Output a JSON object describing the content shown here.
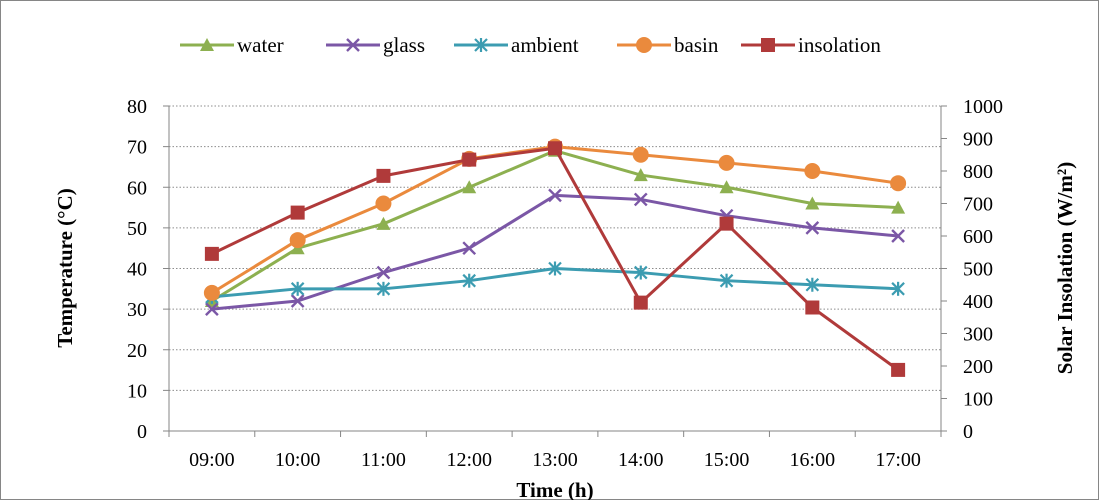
{
  "chart_data": {
    "type": "line",
    "categories": [
      "09:00",
      "10:00",
      "11:00",
      "12:00",
      "13:00",
      "14:00",
      "15:00",
      "16:00",
      "17:00"
    ],
    "xlabel": "Time (h)",
    "ylabel": "Temperature (°C)",
    "y2label": "Solar Insolation (W/m²)",
    "ylim": [
      0,
      80
    ],
    "y_ticks": [
      "0",
      "10",
      "20",
      "30",
      "40",
      "50",
      "60",
      "70",
      "80"
    ],
    "y2lim": [
      0,
      1000
    ],
    "y2_ticks": [
      "0",
      "100",
      "200",
      "300",
      "400",
      "500",
      "600",
      "700",
      "800",
      "900",
      "1000"
    ],
    "grid": true,
    "legend_position": "top",
    "series": [
      {
        "name": "water",
        "axis": "left",
        "color": "#8DB050",
        "marker": "triangle",
        "values": [
          32,
          45,
          51,
          60,
          69,
          63,
          60,
          56,
          55
        ]
      },
      {
        "name": "glass",
        "axis": "left",
        "color": "#7B57A6",
        "marker": "x",
        "values": [
          30,
          32,
          39,
          45,
          58,
          57,
          53,
          50,
          48
        ]
      },
      {
        "name": "ambient",
        "axis": "left",
        "color": "#3C9CB1",
        "marker": "star",
        "values": [
          33,
          35,
          35,
          37,
          40,
          39,
          37,
          36,
          35
        ]
      },
      {
        "name": "basin",
        "axis": "left",
        "color": "#EA8A3D",
        "marker": "circle",
        "values": [
          34,
          47,
          56,
          67,
          70,
          68,
          66,
          64,
          61
        ]
      },
      {
        "name": "insolation",
        "axis": "right",
        "color": "#B03A3A",
        "marker": "square",
        "values": [
          545,
          672,
          785,
          835,
          870,
          395,
          638,
          380,
          188
        ]
      }
    ]
  }
}
